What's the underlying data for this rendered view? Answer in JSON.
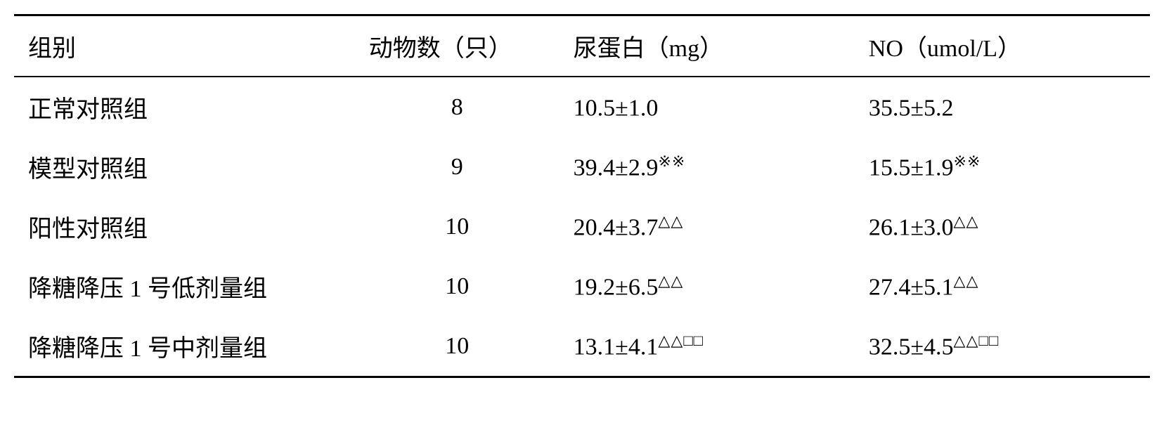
{
  "table": {
    "headers": {
      "group": "组别",
      "count": "动物数（只）",
      "protein": "尿蛋白（mg）",
      "no": "NO（umol/L）"
    },
    "rows": [
      {
        "group": "正常对照组",
        "count": "8",
        "protein_val": "10.5±1.0",
        "protein_sup": "",
        "no_val": "35.5±5.2",
        "no_sup": ""
      },
      {
        "group": "模型对照组",
        "count": "9",
        "protein_val": "39.4±2.9",
        "protein_sup": "※※",
        "no_val": "15.5±1.9",
        "no_sup": "※※"
      },
      {
        "group": "阳性对照组",
        "count": "10",
        "protein_val": "20.4±3.7",
        "protein_sup": "△△",
        "no_val": "26.1±3.0",
        "no_sup": "△△"
      },
      {
        "group": "降糖降压 1 号低剂量组",
        "count": "10",
        "protein_val": "19.2±6.5",
        "protein_sup": "△△",
        "no_val": "27.4±5.1",
        "no_sup": "△△"
      },
      {
        "group": "降糖降压 1 号中剂量组",
        "count": "10",
        "protein_val": "13.1±4.1",
        "protein_sup": "△△□□",
        "no_val": "32.5±4.5",
        "no_sup": "△△□□"
      }
    ],
    "styling": {
      "border_top_width": 3,
      "header_border_bottom_width": 2,
      "border_bottom_width": 3,
      "border_color": "#000000",
      "background_color": "#ffffff",
      "font_size": 34,
      "cjk_font": "KaiTi",
      "latin_font": "Times New Roman",
      "row_padding_v": 18,
      "row_padding_h": 20
    }
  }
}
